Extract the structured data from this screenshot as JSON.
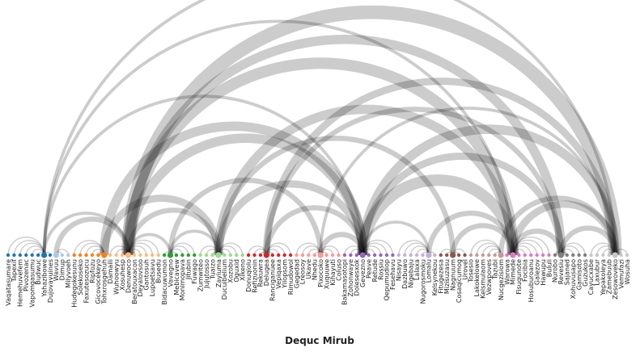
{
  "chart_data": {
    "type": "arc-diagram",
    "title": "Dequc Mirub",
    "groups": [
      {
        "id": 0,
        "color": "#1f77b4",
        "nodes": [
          "Vaqatasumare",
          "Tapexif",
          "Hemehuvefem",
          "Pivozenac",
          "Vapomgasumu",
          "Budwuc",
          "Yahazibowe",
          "Dujovavuines"
        ],
        "hub": "Yahazibowe"
      },
      {
        "id": 1,
        "color": "#aec7e8",
        "nodes": [
          "Wavuu",
          "Dimup",
          "Milyvoeh"
        ],
        "hub": "Wavuu"
      },
      {
        "id": 2,
        "color": "#ff7f0e",
        "nodes": [
          "Hudegokesunu",
          "Solekoseko",
          "Faxutesozucu",
          "Ripfozu",
          "Gicovocekeyo",
          "Tohxrosgehuh"
        ],
        "hub": "Tohxrosgehuh"
      },
      {
        "id": 3,
        "color": "#ffbb78",
        "nodes": [
          "Damaili",
          "Wuhoowyu",
          "Xosuhesp",
          "Denuwoco",
          "Beratouxacon",
          "Deyalovsoo",
          "Gantosuh",
          "Lupoetsavu",
          "Busedu"
        ],
        "hub": "Denuwoco"
      },
      {
        "id": 4,
        "color": "#2ca02c",
        "nodes": [
          "Bidacuwumon",
          "Vavegno",
          "Mebicavew",
          "Monimopava",
          "Jitubin",
          "Fuwago"
        ],
        "hub": "Vavegno"
      },
      {
        "id": 5,
        "color": "#98df8a",
        "nodes": [
          "Zumwiteo",
          "Jujutosso",
          "Tuaizo",
          "Zayiuma",
          "Ducuibelium",
          "Xozobu",
          "Oguxid",
          "Xikeno"
        ],
        "hub": "Zayiuma"
      },
      {
        "id": 6,
        "color": "#d62728",
        "nodes": [
          "Donuqiolu",
          "Refizuonin",
          "Rekuwra",
          "Delugea",
          "Ranciganuee",
          "Vepiqaxa",
          "Yilopsom",
          "Rimudowol"
        ],
        "hub": "Delugea"
      },
      {
        "id": 7,
        "color": "#ff9896",
        "nodes": [
          "Gegedad",
          "Lreosoy",
          "Ukave",
          "Nhedu",
          "Pixocoko",
          "Xuquuwe",
          "Kihayuti",
          "Coluso"
        ],
        "hub": "Pixocoko"
      },
      {
        "id": 8,
        "color": "#9467bd",
        "nodes": [
          "Bakamasotopi",
          "Zohonwaye",
          "Dolesesxok",
          "Gevezno",
          "Peave",
          "Retude",
          "Rossiu",
          "Qepumudiop",
          "Fesehavu"
        ],
        "hub": "Gevezno"
      },
      {
        "id": 9,
        "color": "#c5b0d5",
        "nodes": [
          "Nisayu",
          "Dazbuwo",
          "Nigebaju",
          "Lalaxa",
          "Nugorosmoku",
          "Lomalu",
          "Kelsynekou"
        ],
        "hub": "Lomalu"
      },
      {
        "id": 10,
        "color": "#8c564b",
        "nodes": [
          "Fitugezesa",
          "Mizisuzasu",
          "Nagnuum",
          "Cosaqicumog",
          "Urovel"
        ],
        "hub": "Nagnuum"
      },
      {
        "id": 11,
        "color": "#c49c94",
        "nodes": [
          "Tosesio",
          "Lakokelowe",
          "Kelsmulaom",
          "Vezwpoves",
          "Tazubi",
          "Nucgezisiom"
        ],
        "hub": "Nucgezisiom"
      },
      {
        "id": 12,
        "color": "#e377c2",
        "nodes": [
          "Warowa",
          "Mimede",
          "Fisuqunote",
          "Focibia",
          "Hosuburoanu",
          "Galezov",
          "Hawupu",
          "Bululi"
        ],
        "hub": "Mimede"
      },
      {
        "id": 13,
        "color": "#7f7f7f",
        "nodes": [
          "Nurobo",
          "Revesiu",
          "Sajaned",
          "Xohuvusapo",
          "Gamisoto",
          "Guzukos"
        ],
        "hub": "Revesiu"
      },
      {
        "id": 14,
        "color": "#c7c7c7",
        "nodes": [
          "Cayucxabe",
          "Laxubur",
          "Yepakoleya",
          "Zamebuub",
          "Zesowoveko",
          "Vemufazi",
          "Wosuha"
        ],
        "hub": "Zesowoveko"
      }
    ],
    "links": [
      {
        "source": "Yahazibowe",
        "target": "Zesowoveko",
        "value": 1
      },
      {
        "source": "Yahazibowe",
        "target": "Mimede",
        "value": 1
      },
      {
        "source": "Yahazibowe",
        "target": "Gevezno",
        "value": 1
      },
      {
        "source": "Yahazibowe",
        "target": "Denuwoco",
        "value": 1
      },
      {
        "source": "Wavuu",
        "target": "Denuwoco",
        "value": 2
      },
      {
        "source": "Tohxrosgehuh",
        "target": "Gevezno",
        "value": 4
      },
      {
        "source": "Tohxrosgehuh",
        "target": "Zayiuma",
        "value": 3
      },
      {
        "source": "Denuwoco",
        "target": "Zesowoveko",
        "value": 6
      },
      {
        "source": "Denuwoco",
        "target": "Revesiu",
        "value": 4
      },
      {
        "source": "Denuwoco",
        "target": "Mimede",
        "value": 5
      },
      {
        "source": "Denuwoco",
        "target": "Gevezno",
        "value": 4
      },
      {
        "source": "Denuwoco",
        "target": "Zayiuma",
        "value": 2
      },
      {
        "source": "Denuwoco",
        "target": "Vavegno",
        "value": 1
      },
      {
        "source": "Vavegno",
        "target": "Pixocoko",
        "value": 2
      },
      {
        "source": "Vavegno",
        "target": "Zayiuma",
        "value": 1
      },
      {
        "source": "Zayiuma",
        "target": "Mimede",
        "value": 4
      },
      {
        "source": "Zayiuma",
        "target": "Gevezno",
        "value": 3
      },
      {
        "source": "Zayiuma",
        "target": "Nagnuum",
        "value": 2
      },
      {
        "source": "Delugea",
        "target": "Revesiu",
        "value": 2
      },
      {
        "source": "Delugea",
        "target": "Zesowoveko",
        "value": 3
      },
      {
        "source": "Delugea",
        "target": "Gevezno",
        "value": 2
      },
      {
        "source": "Pixocoko",
        "target": "Gevezno",
        "value": 2
      },
      {
        "source": "Pixocoko",
        "target": "Zesowoveko",
        "value": 1
      },
      {
        "source": "Gevezno",
        "target": "Mimede",
        "value": 5
      },
      {
        "source": "Gevezno",
        "target": "Zesowoveko",
        "value": 4
      },
      {
        "source": "Gevezno",
        "target": "Revesiu",
        "value": 3
      },
      {
        "source": "Gevezno",
        "target": "Lomalu",
        "value": 1
      },
      {
        "source": "Lomalu",
        "target": "Mimede",
        "value": 2
      },
      {
        "source": "Nagnuum",
        "target": "Mimede",
        "value": 2
      },
      {
        "source": "Nucgezisiom",
        "target": "Zesowoveko",
        "value": 2
      },
      {
        "source": "Mimede",
        "target": "Revesiu",
        "value": 2
      },
      {
        "source": "Mimede",
        "target": "Zesowoveko",
        "value": 3
      },
      {
        "source": "Revesiu",
        "target": "Zesowoveko",
        "value": 2
      }
    ]
  }
}
